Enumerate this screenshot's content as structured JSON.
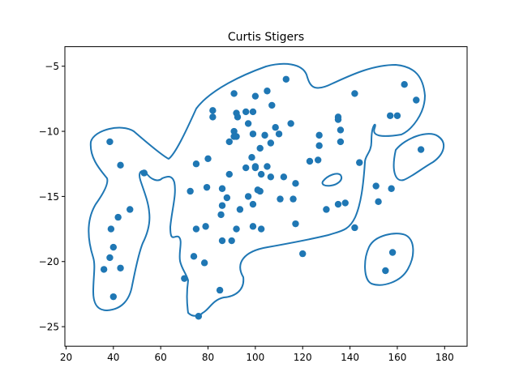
{
  "chart_data": {
    "type": "scatter",
    "title": "Curtis Stigers",
    "xlabel": "",
    "ylabel": "",
    "xlim": [
      19.5,
      189.5
    ],
    "ylim": [
      -26.5,
      -3.5
    ],
    "xticks": [
      20,
      40,
      60,
      80,
      100,
      120,
      140,
      160,
      180
    ],
    "yticks": [
      -5,
      -10,
      -15,
      -20,
      -25
    ],
    "xtick_labels": [
      "20",
      "40",
      "60",
      "80",
      "100",
      "120",
      "140",
      "160",
      "180"
    ],
    "ytick_labels": [
      "−5",
      "−10",
      "−15",
      "−20",
      "−25"
    ],
    "grid": false,
    "colors": {
      "points": "#1f77b4",
      "contour": "#1f77b4"
    },
    "points": [
      [
        38.5,
        -10.8
      ],
      [
        43.0,
        -12.6
      ],
      [
        53.0,
        -13.2
      ],
      [
        47.0,
        -16.0
      ],
      [
        42.0,
        -16.6
      ],
      [
        39.0,
        -17.5
      ],
      [
        40.0,
        -18.9
      ],
      [
        38.5,
        -19.7
      ],
      [
        36.0,
        -20.6
      ],
      [
        43.0,
        -20.5
      ],
      [
        40.0,
        -22.7
      ],
      [
        70.0,
        -21.3
      ],
      [
        74.0,
        -19.6
      ],
      [
        78.5,
        -20.1
      ],
      [
        76.0,
        -24.2
      ],
      [
        85.0,
        -22.2
      ],
      [
        72.5,
        -14.6
      ],
      [
        75.0,
        -12.5
      ],
      [
        80.0,
        -12.1
      ],
      [
        82.0,
        -8.4
      ],
      [
        82.0,
        -8.9
      ],
      [
        79.5,
        -14.3
      ],
      [
        75.0,
        -17.5
      ],
      [
        79.0,
        -17.3
      ],
      [
        85.5,
        -16.4
      ],
      [
        86.0,
        -15.7
      ],
      [
        86.0,
        -14.4
      ],
      [
        88.0,
        -15.1
      ],
      [
        89.0,
        -13.3
      ],
      [
        86.0,
        -18.4
      ],
      [
        90.0,
        -18.4
      ],
      [
        92.0,
        -17.5
      ],
      [
        93.5,
        -16.0
      ],
      [
        89.0,
        -10.8
      ],
      [
        91.0,
        -10.0
      ],
      [
        91.0,
        -10.4
      ],
      [
        92.0,
        -10.4
      ],
      [
        91.0,
        -7.1
      ],
      [
        92.0,
        -8.6
      ],
      [
        92.5,
        -8.9
      ],
      [
        96.0,
        -8.5
      ],
      [
        99.0,
        -8.5
      ],
      [
        100.0,
        -7.3
      ],
      [
        97.0,
        -9.4
      ],
      [
        99.0,
        -10.2
      ],
      [
        98.5,
        -12.0
      ],
      [
        96.0,
        -12.8
      ],
      [
        100.0,
        -12.7
      ],
      [
        100.0,
        -12.8
      ],
      [
        102.5,
        -13.3
      ],
      [
        102.0,
        -11.3
      ],
      [
        104.0,
        -10.3
      ],
      [
        105.0,
        -6.9
      ],
      [
        107.0,
        -8.0
      ],
      [
        108.5,
        -9.7
      ],
      [
        110.0,
        -10.2
      ],
      [
        106.5,
        -10.9
      ],
      [
        105.0,
        -12.7
      ],
      [
        106.5,
        -13.5
      ],
      [
        110.5,
        -15.2
      ],
      [
        112.0,
        -13.5
      ],
      [
        113.0,
        -6.0
      ],
      [
        115.0,
        -9.4
      ],
      [
        116.0,
        -15.2
      ],
      [
        117.0,
        -14.0
      ],
      [
        117.0,
        -17.1
      ],
      [
        99.0,
        -15.6
      ],
      [
        97.0,
        -15.0
      ],
      [
        101.0,
        -14.5
      ],
      [
        102.0,
        -14.6
      ],
      [
        99.0,
        -17.3
      ],
      [
        102.5,
        -17.5
      ],
      [
        120.0,
        -19.4
      ],
      [
        123.0,
        -12.3
      ],
      [
        126.5,
        -12.2
      ],
      [
        127.0,
        -10.3
      ],
      [
        127.0,
        -11.1
      ],
      [
        130.0,
        -16.0
      ],
      [
        135.0,
        -15.6
      ],
      [
        135.0,
        -8.9
      ],
      [
        135.0,
        -9.1
      ],
      [
        136.0,
        -9.9
      ],
      [
        136.0,
        -10.8
      ],
      [
        138.0,
        -15.5
      ],
      [
        142.0,
        -7.1
      ],
      [
        142.0,
        -17.4
      ],
      [
        144.0,
        -12.4
      ],
      [
        151.0,
        -14.2
      ],
      [
        152.0,
        -15.4
      ],
      [
        155.0,
        -20.7
      ],
      [
        157.0,
        -8.8
      ],
      [
        157.5,
        -14.4
      ],
      [
        158.0,
        -19.3
      ],
      [
        160.0,
        -8.8
      ],
      [
        163.0,
        -6.4
      ],
      [
        168.0,
        -7.6
      ],
      [
        170.0,
        -11.4
      ]
    ]
  }
}
